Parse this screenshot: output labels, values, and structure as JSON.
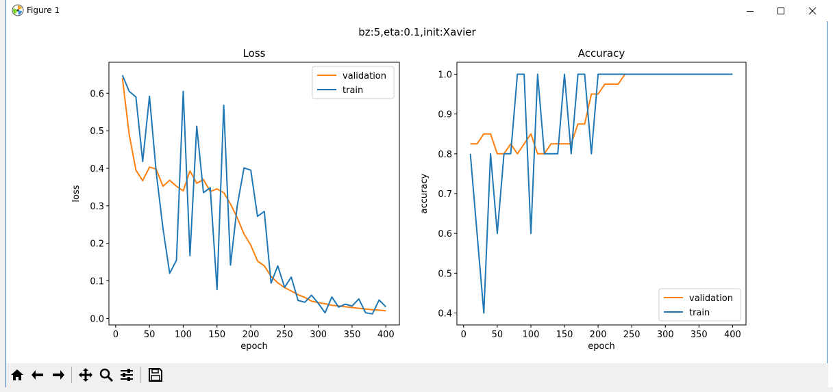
{
  "window": {
    "title": "Figure 1",
    "controls": [
      "minimize",
      "maximize",
      "close"
    ]
  },
  "figure": {
    "suptitle": "bz:5,eta:0.1,init:Xavier"
  },
  "toolbar": {
    "buttons": [
      "home-icon",
      "back-icon",
      "forward-icon",
      "pan-icon",
      "zoom-icon",
      "configure-icon",
      "save-icon"
    ]
  },
  "colors": {
    "validation": "#ff7f0e",
    "train": "#1f77b4"
  },
  "chart_data": [
    {
      "type": "line",
      "title": "Loss",
      "xlabel": "epoch",
      "ylabel": "loss",
      "xlim": [
        -10,
        420
      ],
      "ylim": [
        -0.0175,
        0.6825
      ],
      "xticks": [
        0,
        50,
        100,
        150,
        200,
        250,
        300,
        350,
        400
      ],
      "yticks": [
        0.0,
        0.1,
        0.2,
        0.3,
        0.4,
        0.5,
        0.6
      ],
      "ytick_labels": [
        "0.0",
        "0.1",
        "0.2",
        "0.3",
        "0.4",
        "0.5",
        "0.6"
      ],
      "legend": "top-right",
      "grid": false,
      "x": [
        10,
        20,
        30,
        40,
        50,
        60,
        70,
        80,
        90,
        100,
        110,
        120,
        130,
        140,
        150,
        160,
        170,
        180,
        190,
        200,
        210,
        220,
        230,
        240,
        250,
        260,
        270,
        280,
        290,
        300,
        310,
        320,
        330,
        340,
        350,
        360,
        370,
        380,
        390,
        400
      ],
      "series": [
        {
          "name": "validation",
          "values": [
            0.64,
            0.49,
            0.395,
            0.367,
            0.403,
            0.398,
            0.352,
            0.368,
            0.352,
            0.34,
            0.393,
            0.36,
            0.37,
            0.338,
            0.345,
            0.335,
            0.305,
            0.268,
            0.225,
            0.195,
            0.153,
            0.14,
            0.112,
            0.095,
            0.082,
            0.073,
            0.063,
            0.056,
            0.046,
            0.042,
            0.039,
            0.035,
            0.033,
            0.031,
            0.029,
            0.027,
            0.025,
            0.023,
            0.022,
            0.02
          ]
        },
        {
          "name": "train",
          "values": [
            0.648,
            0.605,
            0.59,
            0.418,
            0.592,
            0.39,
            0.24,
            0.12,
            0.155,
            0.605,
            0.167,
            0.512,
            0.335,
            0.348,
            0.077,
            0.568,
            0.142,
            0.3,
            0.401,
            0.395,
            0.272,
            0.285,
            0.094,
            0.14,
            0.083,
            0.11,
            0.048,
            0.043,
            0.062,
            0.04,
            0.015,
            0.057,
            0.03,
            0.038,
            0.033,
            0.052,
            0.015,
            0.012,
            0.049,
            0.031
          ]
        }
      ]
    },
    {
      "type": "line",
      "title": "Accuracy",
      "xlabel": "epoch",
      "ylabel": "accuracy",
      "xlim": [
        -10,
        420
      ],
      "ylim": [
        0.37,
        1.03
      ],
      "xticks": [
        0,
        50,
        100,
        150,
        200,
        250,
        300,
        350,
        400
      ],
      "yticks": [
        0.4,
        0.5,
        0.6,
        0.7,
        0.8,
        0.9,
        1.0
      ],
      "ytick_labels": [
        "0.4",
        "0.5",
        "0.6",
        "0.7",
        "0.8",
        "0.9",
        "1.0"
      ],
      "legend": "bottom-right",
      "grid": false,
      "x": [
        10,
        20,
        30,
        40,
        50,
        60,
        70,
        80,
        90,
        100,
        110,
        120,
        130,
        140,
        150,
        160,
        170,
        180,
        190,
        200,
        210,
        220,
        230,
        240,
        250,
        260,
        270,
        280,
        290,
        300,
        310,
        320,
        330,
        340,
        350,
        360,
        370,
        380,
        390,
        400
      ],
      "series": [
        {
          "name": "validation",
          "values": [
            0.825,
            0.825,
            0.85,
            0.85,
            0.8,
            0.8,
            0.825,
            0.8,
            0.825,
            0.85,
            0.8,
            0.8,
            0.825,
            0.825,
            0.825,
            0.825,
            0.875,
            0.875,
            0.95,
            0.95,
            0.975,
            0.975,
            0.975,
            1.0,
            1.0,
            1.0,
            1.0,
            1.0,
            1.0,
            1.0,
            1.0,
            1.0,
            1.0,
            1.0,
            1.0,
            1.0,
            1.0,
            1.0,
            1.0,
            1.0
          ]
        },
        {
          "name": "train",
          "values": [
            0.8,
            0.6,
            0.4,
            0.8,
            0.6,
            0.8,
            0.8,
            1.0,
            1.0,
            0.6,
            1.0,
            0.8,
            0.8,
            0.8,
            1.0,
            0.8,
            1.0,
            1.0,
            0.8,
            1.0,
            1.0,
            1.0,
            1.0,
            1.0,
            1.0,
            1.0,
            1.0,
            1.0,
            1.0,
            1.0,
            1.0,
            1.0,
            1.0,
            1.0,
            1.0,
            1.0,
            1.0,
            1.0,
            1.0,
            1.0
          ]
        }
      ]
    }
  ]
}
